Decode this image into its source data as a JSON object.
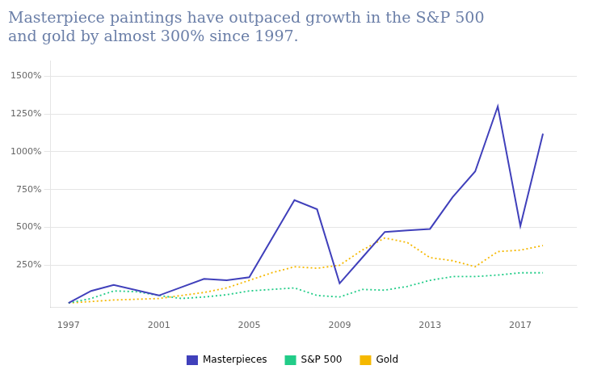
{
  "chart_data": {
    "type": "line",
    "title": [
      "Masterpiece paintings have outpaced growth in the S&P 500",
      "and gold by almost 300% since 1997."
    ],
    "series": [
      {
        "name": "Masterpieces",
        "color": "#4040bb",
        "line_style": "solid",
        "x": [
          1997,
          1998,
          1999,
          2001,
          2003,
          2004,
          2005,
          2007,
          2008,
          2009,
          2010,
          2011,
          2012,
          2013,
          2014,
          2015,
          2016,
          2017,
          2018
        ],
        "values": [
          0,
          80,
          120,
          50,
          160,
          150,
          170,
          680,
          620,
          130,
          300,
          470,
          480,
          490,
          700,
          870,
          1300,
          510,
          1120
        ]
      },
      {
        "name": "S&P 500",
        "color": "#22cc88",
        "line_style": "dotted",
        "x": [
          1997,
          1998,
          1999,
          2000,
          2001,
          2002,
          2003,
          2004,
          2005,
          2006,
          2007,
          2008,
          2009,
          2010,
          2011,
          2012,
          2013,
          2014,
          2015,
          2016,
          2017,
          2018
        ],
        "values": [
          0,
          30,
          80,
          75,
          50,
          30,
          40,
          55,
          80,
          90,
          100,
          50,
          40,
          90,
          85,
          110,
          150,
          175,
          175,
          185,
          200,
          200
        ]
      },
      {
        "name": "Gold",
        "color": "#f5b800",
        "line_style": "dotted",
        "x": [
          1997,
          1998,
          1999,
          2000,
          2001,
          2002,
          2003,
          2004,
          2005,
          2006,
          2007,
          2008,
          2009,
          2010,
          2011,
          2012,
          2013,
          2014,
          2015,
          2016,
          2017,
          2018
        ],
        "values": [
          0,
          10,
          20,
          25,
          30,
          50,
          70,
          100,
          150,
          200,
          240,
          230,
          250,
          350,
          430,
          400,
          300,
          280,
          240,
          340,
          350,
          380
        ]
      }
    ],
    "xlim": [
      1996.2,
      2019.5
    ],
    "xticks": [
      1997,
      2001,
      2005,
      2009,
      2013,
      2017
    ],
    "ylim": [
      -30,
      1600
    ],
    "yticks": [
      {
        "value": 1500,
        "label": "1500%"
      },
      {
        "value": 1250,
        "label": "1250%"
      },
      {
        "value": 1000,
        "label": "1000%"
      },
      {
        "value": 750,
        "label": "750%"
      },
      {
        "value": 500,
        "label": "500%"
      },
      {
        "value": 250,
        "label": "250%"
      }
    ],
    "grid": "y",
    "legend": "bottom"
  }
}
